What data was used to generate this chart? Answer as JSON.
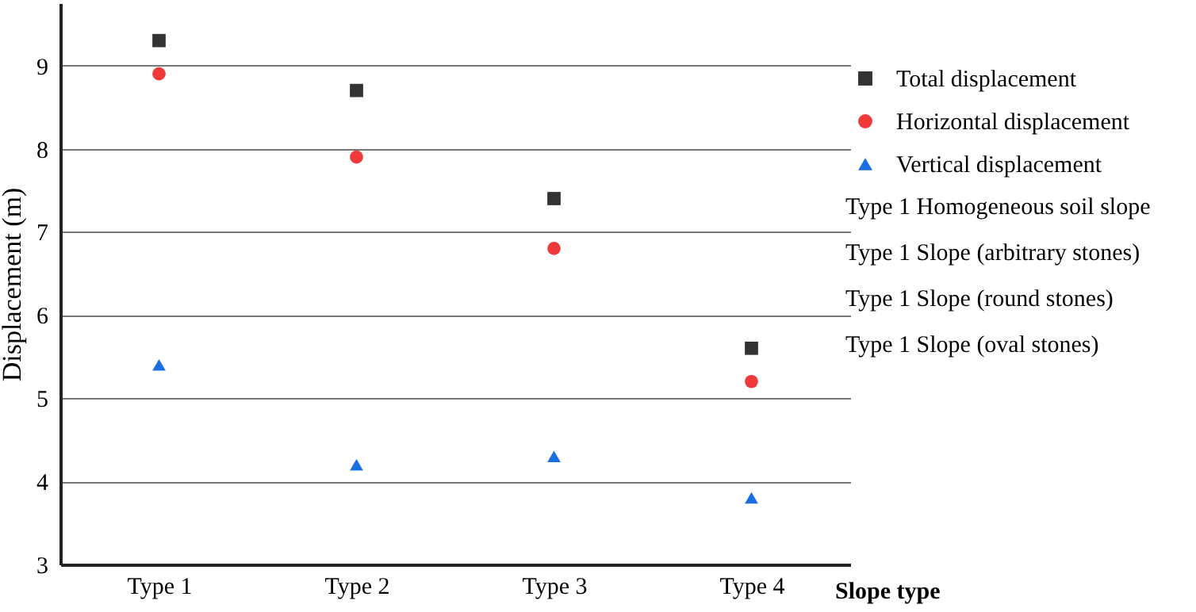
{
  "chart_data": {
    "type": "scatter",
    "xlabel": "Slope type",
    "ylabel": "Displacement (m)",
    "categories": [
      "Type 1",
      "Type 2",
      "Type 3",
      "Type 4"
    ],
    "series": [
      {
        "name": "Total displacement",
        "color": "#333333",
        "marker": "square",
        "values": [
          9.3,
          8.7,
          7.4,
          5.6
        ]
      },
      {
        "name": "Horizontal displacement",
        "color": "#f03a3a",
        "marker": "circle",
        "values": [
          8.9,
          7.9,
          6.8,
          5.2
        ]
      },
      {
        "name": "Vertical displacement",
        "color": "#1a6ee0",
        "marker": "triangle",
        "values": [
          5.4,
          4.2,
          4.3,
          3.8
        ]
      }
    ],
    "ylim": [
      3,
      9.75
    ],
    "yticks": [
      3,
      4,
      5,
      6,
      7,
      8,
      9
    ],
    "grid": "y",
    "legend": "right",
    "annotations": [
      "Type 1 Homogeneous soil slope",
      "Type 1 Slope (arbitrary stones)",
      "Type 1 Slope (round stones)",
      "Type 1 Slope (oval stones)"
    ]
  }
}
